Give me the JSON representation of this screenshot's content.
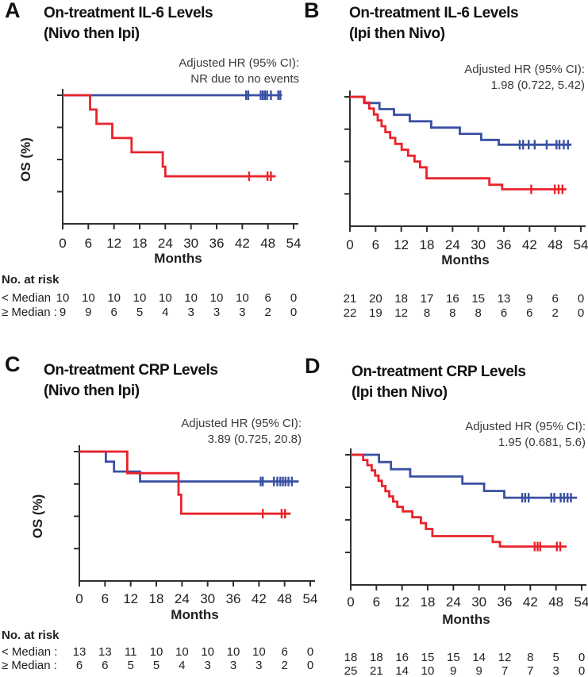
{
  "figure": {
    "ylabel": "OS (%)",
    "xlabel": "Months",
    "risk_header": "No. at risk",
    "colors": {
      "blue": "#3a50a2",
      "red": "#e8232b",
      "axis": "#2f2f2f",
      "text": "#1f1f1f",
      "hr_text": "#3b3b3b"
    }
  },
  "chart_data": [
    {
      "type": "line",
      "label": "A",
      "title": [
        "On-treatment IL-6 Levels",
        "(Nivo then Ipi)"
      ],
      "hr_annotation": [
        "Adjusted HR (95% CI):",
        "NR due to no events"
      ],
      "xlabel": "Months",
      "ylabel": "OS (%)",
      "x_ticks": [
        0,
        6,
        12,
        18,
        24,
        30,
        36,
        42,
        48,
        54
      ],
      "y_axis": {
        "range": [
          0,
          100
        ],
        "ticks": [
          100,
          75,
          50,
          25,
          0
        ],
        "tick_labels_shown": false
      },
      "show_risk_header": true,
      "series": [
        {
          "name": "< Median",
          "color": "blue",
          "steps": [
            [
              0,
              100
            ],
            [
              51.3,
              100
            ]
          ],
          "censors": [
            [
              42.9,
              100
            ],
            [
              43.4,
              100
            ],
            [
              46.3,
              100
            ],
            [
              46.8,
              100
            ],
            [
              47.3,
              100
            ],
            [
              47.8,
              100
            ],
            [
              48.7,
              100
            ],
            [
              50.4,
              100
            ],
            [
              50.9,
              100
            ]
          ]
        },
        {
          "name": "≥ Median",
          "color": "red",
          "steps": [
            [
              0,
              100
            ],
            [
              6.4,
              100
            ],
            [
              6.4,
              88.9
            ],
            [
              7.9,
              88.9
            ],
            [
              7.9,
              77.8
            ],
            [
              11.6,
              77.8
            ],
            [
              11.6,
              66.7
            ],
            [
              16.1,
              66.7
            ],
            [
              16.1,
              55.6
            ],
            [
              23.4,
              55.6
            ],
            [
              23.4,
              44.4
            ],
            [
              24,
              44.4
            ],
            [
              24,
              37
            ],
            [
              49.8,
              37
            ]
          ],
          "censors": [
            [
              43.6,
              37
            ],
            [
              47.9,
              37
            ],
            [
              48.7,
              37
            ]
          ]
        }
      ],
      "risk_rows": [
        {
          "label": "< Median",
          "sep": "",
          "color": "blue",
          "values": [
            "10",
            "10",
            "10",
            "10",
            "10",
            "10",
            "10",
            "10",
            "6",
            "0"
          ]
        },
        {
          "label": "≥ Median",
          "sep": ":",
          "color": "red",
          "values": [
            "9",
            "9",
            "6",
            "5",
            "4",
            "3",
            "3",
            "3",
            "2",
            "0"
          ]
        }
      ]
    },
    {
      "type": "line",
      "label": "B",
      "title": [
        "On-treatment IL-6 Levels",
        "(Ipi then Nivo)"
      ],
      "hr_annotation": [
        "Adjusted HR (95% CI):",
        "1.98 (0.722, 5.42)"
      ],
      "xlabel": "Months",
      "ylabel": "",
      "x_ticks": [
        0,
        6,
        12,
        18,
        24,
        30,
        36,
        42,
        48,
        54
      ],
      "y_axis": {
        "range": [
          0,
          100
        ],
        "ticks": [
          100,
          75,
          50,
          25,
          0
        ],
        "tick_labels_shown": false
      },
      "show_risk_header": false,
      "series": [
        {
          "name": "< Median",
          "color": "blue",
          "steps": [
            [
              0,
              100
            ],
            [
              3.4,
              100
            ],
            [
              3.4,
              95.2
            ],
            [
              6.9,
              95.2
            ],
            [
              6.9,
              90.5
            ],
            [
              10.3,
              90.5
            ],
            [
              10.3,
              86.1
            ],
            [
              14,
              86.1
            ],
            [
              14,
              81.1
            ],
            [
              19,
              81.1
            ],
            [
              19,
              76.2
            ],
            [
              25.7,
              76.2
            ],
            [
              25.7,
              71.4
            ],
            [
              30.7,
              71.4
            ],
            [
              30.7,
              66.7
            ],
            [
              34.8,
              66.7
            ],
            [
              34.8,
              63
            ],
            [
              51.8,
              63
            ]
          ],
          "censors": [
            [
              39.7,
              63
            ],
            [
              40.5,
              63
            ],
            [
              41.8,
              63
            ],
            [
              43.2,
              63
            ],
            [
              46,
              63
            ],
            [
              48.3,
              63
            ],
            [
              49,
              63
            ],
            [
              50,
              63
            ],
            [
              51,
              63
            ]
          ]
        },
        {
          "name": "≥ Median",
          "color": "red",
          "steps": [
            [
              0,
              100
            ],
            [
              3.3,
              100
            ],
            [
              3.3,
              95.5
            ],
            [
              4.5,
              95.5
            ],
            [
              4.5,
              90.9
            ],
            [
              5.6,
              90.9
            ],
            [
              5.6,
              86.4
            ],
            [
              6.5,
              86.4
            ],
            [
              6.5,
              81.8
            ],
            [
              7.4,
              81.8
            ],
            [
              7.4,
              77.3
            ],
            [
              8.3,
              77.3
            ],
            [
              8.3,
              72.7
            ],
            [
              9.4,
              72.7
            ],
            [
              9.4,
              68.2
            ],
            [
              10.6,
              68.2
            ],
            [
              10.6,
              63.6
            ],
            [
              12.1,
              63.6
            ],
            [
              12.1,
              59.1
            ],
            [
              13.6,
              59.1
            ],
            [
              13.6,
              54.5
            ],
            [
              15.1,
              54.5
            ],
            [
              15.1,
              50
            ],
            [
              16.4,
              50
            ],
            [
              16.4,
              45.5
            ],
            [
              17.9,
              45.5
            ],
            [
              17.9,
              37
            ],
            [
              32.6,
              37
            ],
            [
              32.6,
              32
            ],
            [
              35.6,
              32
            ],
            [
              35.6,
              28.5
            ],
            [
              50.6,
              28.5
            ]
          ],
          "censors": [
            [
              42.4,
              28.5
            ],
            [
              47.9,
              28.5
            ],
            [
              48.8,
              28.5
            ],
            [
              49.7,
              28.5
            ]
          ]
        }
      ],
      "risk_rows": [
        {
          "label": "",
          "sep": "",
          "color": "blue",
          "values": [
            "21",
            "20",
            "18",
            "17",
            "16",
            "15",
            "13",
            "9",
            "6",
            "0"
          ]
        },
        {
          "label": "",
          "sep": "",
          "color": "red",
          "values": [
            "22",
            "19",
            "12",
            "8",
            "8",
            "8",
            "6",
            "6",
            "2",
            "0"
          ]
        }
      ]
    },
    {
      "type": "line",
      "label": "C",
      "title": [
        "On-treatment CRP Levels",
        "(Nivo then Ipi)"
      ],
      "hr_annotation": [
        "Adjusted HR (95% CI):",
        "3.89 (0.725, 20.8)"
      ],
      "xlabel": "Months",
      "ylabel": "OS (%)",
      "x_ticks": [
        0,
        6,
        12,
        18,
        24,
        30,
        36,
        42,
        48,
        54
      ],
      "y_axis": {
        "range": [
          0,
          100
        ],
        "ticks": [
          100,
          75,
          50,
          25,
          0
        ],
        "tick_labels_shown": false
      },
      "show_risk_header": true,
      "series": [
        {
          "name": "< Median",
          "color": "blue",
          "steps": [
            [
              0,
              100
            ],
            [
              6.2,
              100
            ],
            [
              6.2,
              92.3
            ],
            [
              8.1,
              92.3
            ],
            [
              8.1,
              84.6
            ],
            [
              14.2,
              84.6
            ],
            [
              14.2,
              76.9
            ],
            [
              51.3,
              76.9
            ]
          ],
          "censors": [
            [
              42.4,
              76.9
            ],
            [
              42.9,
              76.9
            ],
            [
              45.5,
              76.9
            ],
            [
              46.3,
              76.9
            ],
            [
              47,
              76.9
            ],
            [
              47.6,
              76.9
            ],
            [
              48.2,
              76.9
            ],
            [
              48.9,
              76.9
            ],
            [
              49.7,
              76.9
            ]
          ]
        },
        {
          "name": "≥ Median",
          "color": "red",
          "steps": [
            [
              0,
              100
            ],
            [
              11.2,
              100
            ],
            [
              11.2,
              83.3
            ],
            [
              23.2,
              83.3
            ],
            [
              23.2,
              66.7
            ],
            [
              23.8,
              66.7
            ],
            [
              23.8,
              52
            ],
            [
              49.4,
              52
            ]
          ],
          "censors": [
            [
              42.9,
              52
            ],
            [
              47.3,
              52
            ],
            [
              48.1,
              52
            ]
          ]
        }
      ],
      "risk_rows": [
        {
          "label": "< Median",
          "sep": ":",
          "color": "blue",
          "values": [
            "13",
            "13",
            "11",
            "10",
            "10",
            "10",
            "10",
            "10",
            "6",
            "0"
          ]
        },
        {
          "label": "≥ Median",
          "sep": ":",
          "color": "red",
          "values": [
            "6",
            "6",
            "5",
            "5",
            "4",
            "3",
            "3",
            "3",
            "2",
            "0"
          ]
        }
      ]
    },
    {
      "type": "line",
      "label": "D",
      "title": [
        "On-treatment CRP Levels",
        "(Ipi then Nivo)"
      ],
      "hr_annotation": [
        "Adjusted HR (95% CI):",
        "1.95 (0.681, 5.6)"
      ],
      "xlabel": "Months",
      "ylabel": "",
      "x_ticks": [
        0,
        6,
        12,
        18,
        24,
        30,
        36,
        42,
        48,
        54
      ],
      "y_axis": {
        "range": [
          0,
          100
        ],
        "ticks": [
          100,
          75,
          50,
          25,
          0
        ],
        "tick_labels_shown": false
      },
      "show_risk_header": false,
      "series": [
        {
          "name": "< Median",
          "color": "blue",
          "steps": [
            [
              0,
              100
            ],
            [
              6.6,
              100
            ],
            [
              6.6,
              94.4
            ],
            [
              9.4,
              94.4
            ],
            [
              9.4,
              88.9
            ],
            [
              13.9,
              88.9
            ],
            [
              13.9,
              83.3
            ],
            [
              26.1,
              83.3
            ],
            [
              26.1,
              77.8
            ],
            [
              31.2,
              77.8
            ],
            [
              31.2,
              72.2
            ],
            [
              35.9,
              72.2
            ],
            [
              35.9,
              67
            ],
            [
              52.9,
              67
            ]
          ],
          "censors": [
            [
              40.1,
              67
            ],
            [
              40.8,
              67
            ],
            [
              41.6,
              67
            ],
            [
              46.9,
              67
            ],
            [
              47.6,
              67
            ],
            [
              49.1,
              67
            ],
            [
              49.9,
              67
            ],
            [
              50.7,
              67
            ],
            [
              51.5,
              67
            ]
          ]
        },
        {
          "name": "≥ Median",
          "color": "red",
          "steps": [
            [
              0,
              100
            ],
            [
              2.9,
              100
            ],
            [
              2.9,
              96
            ],
            [
              3.9,
              96
            ],
            [
              3.9,
              92
            ],
            [
              4.9,
              92
            ],
            [
              4.9,
              88
            ],
            [
              5.7,
              88
            ],
            [
              5.7,
              84
            ],
            [
              6.5,
              84
            ],
            [
              6.5,
              80
            ],
            [
              7.3,
              80
            ],
            [
              7.3,
              76
            ],
            [
              8.1,
              76
            ],
            [
              8.1,
              72
            ],
            [
              9,
              72
            ],
            [
              9,
              68
            ],
            [
              9.9,
              68
            ],
            [
              9.9,
              64
            ],
            [
              10.9,
              64
            ],
            [
              10.9,
              60
            ],
            [
              12.2,
              60
            ],
            [
              12.2,
              56.5
            ],
            [
              14.4,
              56.5
            ],
            [
              14.4,
              52
            ],
            [
              16.4,
              52
            ],
            [
              16.4,
              47.5
            ],
            [
              17.6,
              47.5
            ],
            [
              17.6,
              43
            ],
            [
              19.1,
              43
            ],
            [
              19.1,
              37.5
            ],
            [
              33.2,
              37.5
            ],
            [
              33.2,
              33
            ],
            [
              34.9,
              33
            ],
            [
              34.9,
              29.5
            ],
            [
              50.5,
              29.5
            ]
          ],
          "censors": [
            [
              43,
              29.5
            ],
            [
              43.7,
              29.5
            ],
            [
              44.3,
              29.5
            ],
            [
              48.2,
              29.5
            ],
            [
              49,
              29.5
            ]
          ]
        }
      ],
      "risk_rows": [
        {
          "label": "",
          "sep": "",
          "color": "blue",
          "values": [
            "18",
            "18",
            "16",
            "15",
            "15",
            "14",
            "12",
            "8",
            "5",
            "0"
          ]
        },
        {
          "label": "",
          "sep": "",
          "color": "red",
          "values": [
            "25",
            "21",
            "14",
            "10",
            "9",
            "9",
            "7",
            "7",
            "3",
            "0"
          ]
        }
      ]
    }
  ]
}
